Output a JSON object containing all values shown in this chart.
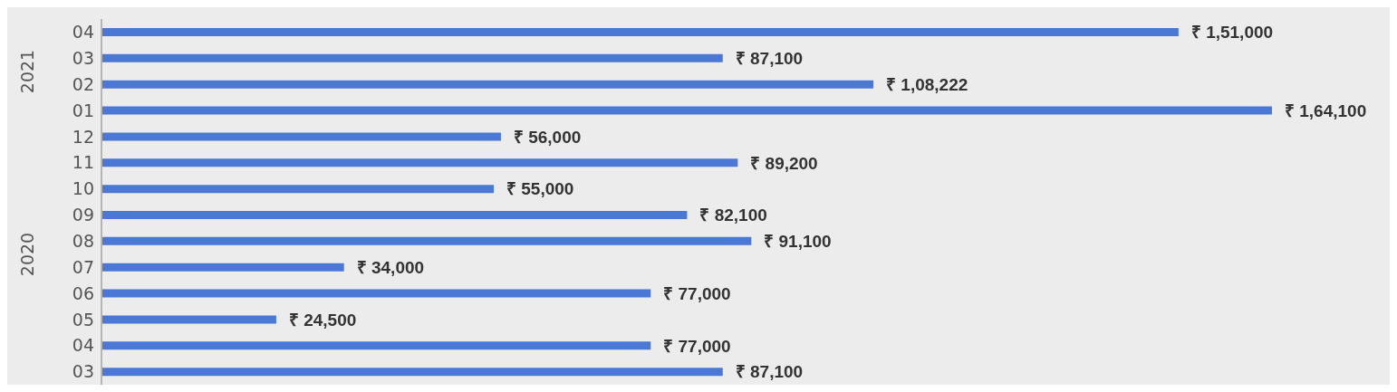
{
  "chart_data": {
    "type": "bar",
    "orientation": "horizontal",
    "categories": [
      "04",
      "03",
      "02",
      "01",
      "12",
      "11",
      "10",
      "09",
      "08",
      "07",
      "06",
      "05",
      "04",
      "03"
    ],
    "values": [
      151000,
      87100,
      108222,
      164100,
      56000,
      89200,
      55000,
      82100,
      91100,
      34000,
      77000,
      24500,
      77000,
      87100
    ],
    "value_labels": [
      "₹ 1,51,000",
      "₹ 87,100",
      "₹ 1,08,222",
      "₹ 1,64,100",
      "₹ 56,000",
      "₹ 89,200",
      "₹ 55,000",
      "₹ 82,100",
      "₹ 91,100",
      "₹ 34,000",
      "₹ 77,000",
      "₹ 24,500",
      "₹ 77,000",
      "₹ 87,100"
    ],
    "color": "#4a78d4",
    "annotations": [
      "2021",
      "2020"
    ],
    "grid": false,
    "legend": false
  }
}
